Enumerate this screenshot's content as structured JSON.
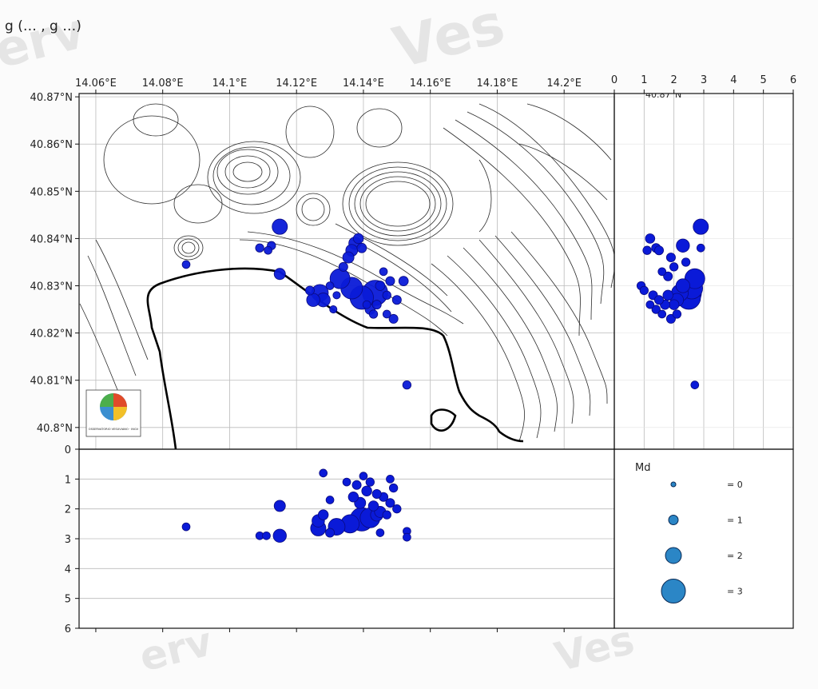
{
  "header_text": "g (… , g …)",
  "watermarks": [
    "erv",
    "Ves",
    "erv",
    "Ves"
  ],
  "colors": {
    "event": "#0a1ad8",
    "event_edge": "#0a0a80",
    "legend_fill": "#2b86c6",
    "legend_edge": "#0a2a55",
    "contour": "#333333",
    "coast": "#000000",
    "grid": "#bbbbbb"
  },
  "logo_text": "OSSERVATORIO VESUVIANO · INGV",
  "chart_data": [
    {
      "type": "scatter",
      "name": "map",
      "x_tick_labels": [
        "14.06°E",
        "14.08°E",
        "14.1°E",
        "14.12°E",
        "14.14°E",
        "14.16°E",
        "14.18°E",
        "14.2°E"
      ],
      "x_ticks": [
        14.06,
        14.08,
        14.1,
        14.12,
        14.14,
        14.16,
        14.18,
        14.2
      ],
      "y_tick_labels": [
        "40.87°N",
        "40.86°N",
        "40.85°N",
        "40.84°N",
        "40.83°N",
        "40.82°N",
        "40.81°N",
        "40.8°N"
      ],
      "y_ticks": [
        40.87,
        40.86,
        40.85,
        40.84,
        40.83,
        40.82,
        40.81,
        40.8
      ],
      "xlim": [
        14.055,
        14.215
      ],
      "ylim": [
        40.7954,
        40.8707
      ],
      "events": [
        {
          "lon": 14.1435,
          "lat": 40.8285,
          "md": 3.0
        },
        {
          "lon": 14.1395,
          "lat": 40.8275,
          "md": 2.8
        },
        {
          "lon": 14.1365,
          "lat": 40.8295,
          "md": 2.6
        },
        {
          "lon": 14.133,
          "lat": 40.8315,
          "md": 2.4
        },
        {
          "lon": 14.127,
          "lat": 40.8285,
          "md": 2.0
        },
        {
          "lon": 14.128,
          "lat": 40.827,
          "md": 1.6
        },
        {
          "lon": 14.125,
          "lat": 40.827,
          "md": 1.5
        },
        {
          "lon": 14.115,
          "lat": 40.8425,
          "md": 1.8
        },
        {
          "lon": 14.115,
          "lat": 40.8325,
          "md": 1.2
        },
        {
          "lon": 14.1375,
          "lat": 40.839,
          "md": 1.4
        },
        {
          "lon": 14.1365,
          "lat": 40.8375,
          "md": 1.3
        },
        {
          "lon": 14.1355,
          "lat": 40.836,
          "md": 1.2
        },
        {
          "lon": 14.1385,
          "lat": 40.84,
          "md": 1.0
        },
        {
          "lon": 14.1395,
          "lat": 40.838,
          "md": 0.9
        },
        {
          "lon": 14.134,
          "lat": 40.834,
          "md": 0.8
        },
        {
          "lon": 14.142,
          "lat": 40.825,
          "md": 1.0
        },
        {
          "lon": 14.144,
          "lat": 40.826,
          "md": 0.8
        },
        {
          "lon": 14.145,
          "lat": 40.83,
          "md": 0.9
        },
        {
          "lon": 14.147,
          "lat": 40.828,
          "md": 0.7
        },
        {
          "lon": 14.148,
          "lat": 40.831,
          "md": 0.8
        },
        {
          "lon": 14.146,
          "lat": 40.833,
          "md": 0.6
        },
        {
          "lon": 14.15,
          "lat": 40.827,
          "md": 0.8
        },
        {
          "lon": 14.152,
          "lat": 40.831,
          "md": 0.9
        },
        {
          "lon": 14.147,
          "lat": 40.824,
          "md": 0.6
        },
        {
          "lon": 14.149,
          "lat": 40.823,
          "md": 0.8
        },
        {
          "lon": 14.143,
          "lat": 40.824,
          "md": 0.7
        },
        {
          "lon": 14.141,
          "lat": 40.826,
          "md": 0.6
        },
        {
          "lon": 14.132,
          "lat": 40.828,
          "md": 0.5
        },
        {
          "lon": 14.13,
          "lat": 40.83,
          "md": 0.6
        },
        {
          "lon": 14.124,
          "lat": 40.829,
          "md": 0.8
        },
        {
          "lon": 14.131,
          "lat": 40.825,
          "md": 0.5
        },
        {
          "lon": 14.109,
          "lat": 40.838,
          "md": 0.7
        },
        {
          "lon": 14.1115,
          "lat": 40.8375,
          "md": 0.6
        },
        {
          "lon": 14.1125,
          "lat": 40.8385,
          "md": 0.7
        },
        {
          "lon": 14.153,
          "lat": 40.809,
          "md": 0.7
        },
        {
          "lon": 14.087,
          "lat": 40.8345,
          "md": 0.6
        }
      ]
    },
    {
      "type": "scatter",
      "name": "depth-vs-latitude",
      "x_tick_labels": [
        "0",
        "1",
        "2",
        "3",
        "4",
        "5",
        "6"
      ],
      "x_ticks": [
        0,
        1,
        2,
        3,
        4,
        5,
        6
      ],
      "xlim": [
        0,
        6
      ],
      "top_label_partial": "40.87°N",
      "points": [
        {
          "depth": 2.9,
          "lat": 40.8425,
          "md": 1.8
        },
        {
          "depth": 2.3,
          "lat": 40.8385,
          "md": 1.5
        },
        {
          "depth": 2.5,
          "lat": 40.8285,
          "md": 3.0
        },
        {
          "depth": 2.5,
          "lat": 40.8275,
          "md": 2.8
        },
        {
          "depth": 2.6,
          "lat": 40.8295,
          "md": 2.6
        },
        {
          "depth": 2.7,
          "lat": 40.8315,
          "md": 2.4
        },
        {
          "depth": 2.2,
          "lat": 40.8285,
          "md": 2.0
        },
        {
          "depth": 2.3,
          "lat": 40.83,
          "md": 1.6
        },
        {
          "depth": 2.1,
          "lat": 40.827,
          "md": 1.5
        },
        {
          "depth": 1.2,
          "lat": 40.84,
          "md": 0.9
        },
        {
          "depth": 1.4,
          "lat": 40.838,
          "md": 0.8
        },
        {
          "depth": 1.5,
          "lat": 40.8375,
          "md": 0.8
        },
        {
          "depth": 1.1,
          "lat": 40.8375,
          "md": 0.7
        },
        {
          "depth": 1.9,
          "lat": 40.836,
          "md": 0.8
        },
        {
          "depth": 2.0,
          "lat": 40.834,
          "md": 0.7
        },
        {
          "depth": 2.4,
          "lat": 40.835,
          "md": 0.7
        },
        {
          "depth": 2.9,
          "lat": 40.838,
          "md": 0.6
        },
        {
          "depth": 1.6,
          "lat": 40.833,
          "md": 0.6
        },
        {
          "depth": 1.8,
          "lat": 40.832,
          "md": 0.8
        },
        {
          "depth": 0.9,
          "lat": 40.83,
          "md": 0.7
        },
        {
          "depth": 1.0,
          "lat": 40.829,
          "md": 0.7
        },
        {
          "depth": 1.3,
          "lat": 40.828,
          "md": 0.8
        },
        {
          "depth": 1.5,
          "lat": 40.827,
          "md": 0.8
        },
        {
          "depth": 1.7,
          "lat": 40.826,
          "md": 0.9
        },
        {
          "depth": 1.2,
          "lat": 40.826,
          "md": 0.6
        },
        {
          "depth": 1.4,
          "lat": 40.825,
          "md": 0.7
        },
        {
          "depth": 1.6,
          "lat": 40.824,
          "md": 0.6
        },
        {
          "depth": 1.9,
          "lat": 40.823,
          "md": 0.8
        },
        {
          "depth": 2.1,
          "lat": 40.824,
          "md": 0.7
        },
        {
          "depth": 1.8,
          "lat": 40.828,
          "md": 1.0
        },
        {
          "depth": 2.0,
          "lat": 40.826,
          "md": 1.0
        },
        {
          "depth": 2.7,
          "lat": 40.809,
          "md": 0.6
        }
      ]
    },
    {
      "type": "scatter",
      "name": "longitude-vs-depth",
      "y_tick_labels": [
        "0",
        "1",
        "2",
        "3",
        "4",
        "5",
        "6"
      ],
      "y_ticks": [
        0,
        1,
        2,
        3,
        4,
        5,
        6
      ],
      "ylim": [
        0,
        6
      ],
      "xlim": [
        14.055,
        14.215
      ],
      "points": [
        {
          "lon": 14.087,
          "depth": 2.6,
          "md": 0.6
        },
        {
          "lon": 14.109,
          "depth": 2.9,
          "md": 0.6
        },
        {
          "lon": 14.111,
          "depth": 2.9,
          "md": 0.6
        },
        {
          "lon": 14.115,
          "depth": 2.9,
          "md": 1.5
        },
        {
          "lon": 14.115,
          "depth": 1.9,
          "md": 1.2
        },
        {
          "lon": 14.1265,
          "depth": 2.4,
          "md": 1.4
        },
        {
          "lon": 14.1265,
          "depth": 2.65,
          "md": 1.8
        },
        {
          "lon": 14.128,
          "depth": 2.2,
          "md": 1.0
        },
        {
          "lon": 14.13,
          "depth": 2.8,
          "md": 0.8
        },
        {
          "lon": 14.132,
          "depth": 2.6,
          "md": 2.0
        },
        {
          "lon": 14.1395,
          "depth": 2.35,
          "md": 2.8
        },
        {
          "lon": 14.142,
          "depth": 2.3,
          "md": 2.4
        },
        {
          "lon": 14.136,
          "depth": 2.5,
          "md": 2.2
        },
        {
          "lon": 14.144,
          "depth": 2.2,
          "md": 1.4
        },
        {
          "lon": 14.139,
          "depth": 1.8,
          "md": 1.2
        },
        {
          "lon": 14.137,
          "depth": 1.6,
          "md": 1.0
        },
        {
          "lon": 14.141,
          "depth": 1.4,
          "md": 1.0
        },
        {
          "lon": 14.143,
          "depth": 1.9,
          "md": 1.0
        },
        {
          "lon": 14.145,
          "depth": 2.1,
          "md": 1.2
        },
        {
          "lon": 14.146,
          "depth": 1.6,
          "md": 0.8
        },
        {
          "lon": 14.148,
          "depth": 1.8,
          "md": 0.8
        },
        {
          "lon": 14.147,
          "depth": 2.2,
          "md": 0.7
        },
        {
          "lon": 14.149,
          "depth": 1.3,
          "md": 0.7
        },
        {
          "lon": 14.138,
          "depth": 1.2,
          "md": 0.8
        },
        {
          "lon": 14.14,
          "depth": 0.9,
          "md": 0.6
        },
        {
          "lon": 14.142,
          "depth": 1.1,
          "md": 0.7
        },
        {
          "lon": 14.144,
          "depth": 1.5,
          "md": 0.8
        },
        {
          "lon": 14.135,
          "depth": 1.1,
          "md": 0.6
        },
        {
          "lon": 14.13,
          "depth": 1.7,
          "md": 0.6
        },
        {
          "lon": 14.128,
          "depth": 0.8,
          "md": 0.6
        },
        {
          "lon": 14.145,
          "depth": 2.8,
          "md": 0.6
        },
        {
          "lon": 14.153,
          "depth": 2.75,
          "md": 0.6
        },
        {
          "lon": 14.153,
          "depth": 2.95,
          "md": 0.6
        },
        {
          "lon": 14.148,
          "depth": 1.0,
          "md": 0.6
        },
        {
          "lon": 14.15,
          "depth": 2.0,
          "md": 0.7
        }
      ]
    },
    {
      "type": "legend",
      "title": "Md",
      "entries": [
        {
          "label": "= 0",
          "md": 0
        },
        {
          "label": "= 1",
          "md": 1
        },
        {
          "label": "= 2",
          "md": 2
        },
        {
          "label": "= 3",
          "md": 3
        }
      ]
    }
  ]
}
